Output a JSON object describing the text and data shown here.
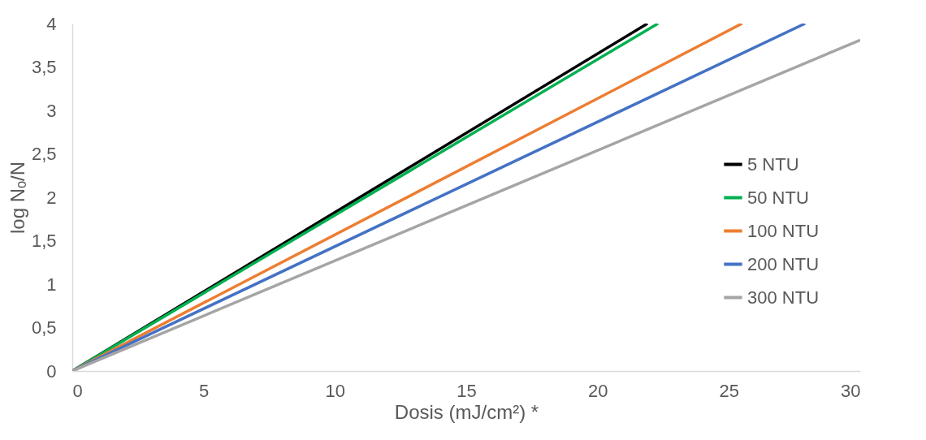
{
  "chart_data": {
    "type": "line",
    "xlabel": "Dosis (mJ/cm²) *",
    "ylabel": "log Nₒ/N",
    "xlim": [
      0,
      30
    ],
    "xticks": [
      0,
      5,
      10,
      15,
      20,
      25,
      30
    ],
    "ylim": [
      0,
      4
    ],
    "yticks": [
      0,
      {
        "value": 0.5,
        "label": "0,5"
      },
      1,
      {
        "value": 1.5,
        "label": "1,5"
      },
      2,
      {
        "value": 2.5,
        "label": "2,5"
      },
      3,
      {
        "value": 3.5,
        "label": "3,5"
      },
      4
    ],
    "grid": false,
    "legend": "right",
    "marker": "none",
    "line_style": "solid",
    "series": [
      {
        "name": "5 NTU",
        "color": "#000000",
        "x": [
          0,
          21.9
        ],
        "values": [
          0,
          4
        ]
      },
      {
        "name": "50 NTU",
        "color": "#00b050",
        "x": [
          0,
          22.3
        ],
        "values": [
          0,
          4
        ]
      },
      {
        "name": "100 NTU",
        "color": "#ed7d31",
        "x": [
          0,
          25.5
        ],
        "values": [
          0,
          4
        ]
      },
      {
        "name": "200 NTU",
        "color": "#4472c4",
        "x": [
          0,
          27.9
        ],
        "values": [
          0,
          4
        ]
      },
      {
        "name": "300 NTU",
        "color": "#a5a5a5",
        "x": [
          0,
          30
        ],
        "values": [
          0,
          3.81
        ]
      }
    ]
  }
}
